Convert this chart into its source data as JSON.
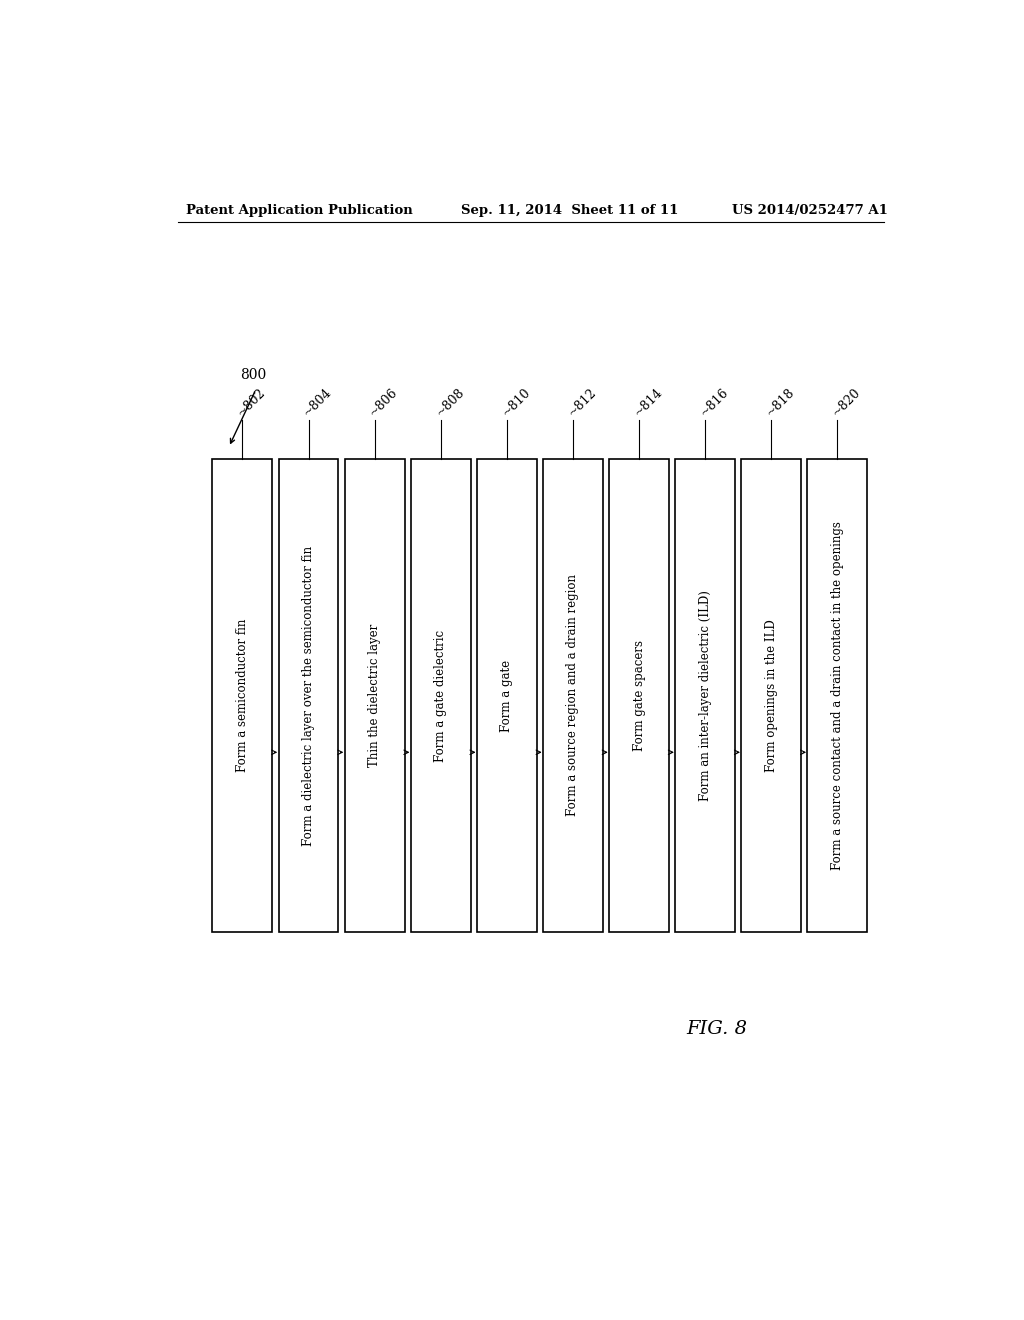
{
  "title_left": "Patent Application Publication",
  "title_mid": "Sep. 11, 2014  Sheet 11 of 11",
  "title_right": "US 2014/0252477 A1",
  "fig_label": "FIG. 8",
  "diagram_label": "800",
  "steps": [
    {
      "id": "802",
      "text": "Form a semiconductor fin"
    },
    {
      "id": "804",
      "text": "Form a dielectric layer over the semiconductor fin"
    },
    {
      "id": "806",
      "text": "Thin the dielectric layer"
    },
    {
      "id": "808",
      "text": "Form a gate dielectric"
    },
    {
      "id": "810",
      "text": "Form a gate"
    },
    {
      "id": "812",
      "text": "Form a source region and a drain region"
    },
    {
      "id": "814",
      "text": "Form gate spacers"
    },
    {
      "id": "816",
      "text": "Form an inter-layer dielectric (ILD)"
    },
    {
      "id": "818",
      "text": "Form openings in the ILD"
    },
    {
      "id": "820",
      "text": "Form a source contact and a drain contact in the openings"
    }
  ],
  "bg_color": "#ffffff",
  "box_fill": "#ffffff",
  "box_edge": "#000000",
  "text_color": "#000000",
  "arrow_color": "#000000",
  "header_fontsize": 9.5,
  "step_fontsize": 8.5,
  "label_fontsize": 9.0,
  "fig_label_fontsize": 14
}
